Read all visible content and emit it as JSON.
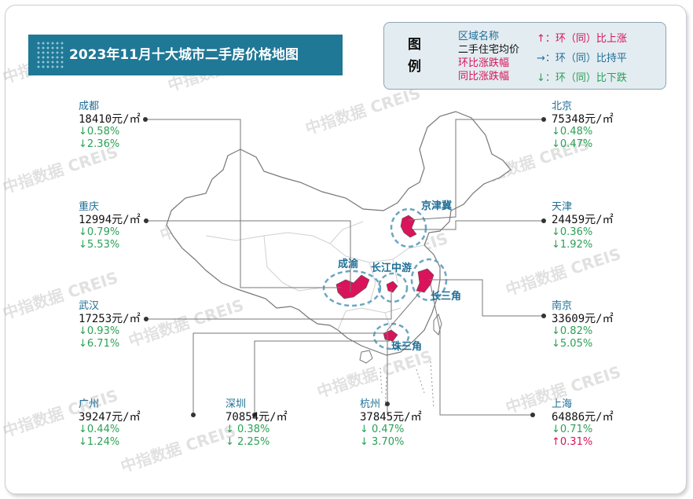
{
  "title": "2023年11月十大城市二手房价格地图",
  "legend": {
    "heading": "图例",
    "area_name": "区域名称",
    "avg_price": "二手住宅均价",
    "mom_change": "环比涨跌幅",
    "yoy_change": "同比涨跌幅",
    "up": "↑：环（同）比上涨",
    "flat": "→：环（同）比持平",
    "down": "↓：环（同）比下跌"
  },
  "regions": {
    "jjj": "京津冀",
    "cy": "成渝",
    "cjzy": "长江中游",
    "csj": "长三角",
    "zsj": "珠三角"
  },
  "watermark": "中指数据 CREIS",
  "cities": {
    "chengdu": {
      "name": "成都",
      "price": "18410元/㎡",
      "mom": "↓0.58%",
      "yoy": "↓2.36%"
    },
    "chongqing": {
      "name": "重庆",
      "price": "12994元/㎡",
      "mom": "↓0.79%",
      "yoy": "↓5.53%"
    },
    "wuhan": {
      "name": "武汉",
      "price": "17253元/㎡",
      "mom": "↓0.93%",
      "yoy": "↓6.71%"
    },
    "guangzhou": {
      "name": "广州",
      "price": "39247元/㎡",
      "mom": "↓0.44%",
      "yoy": "↓1.24%"
    },
    "shenzhen": {
      "name": "深圳",
      "price": "70854元/㎡",
      "mom": "↓ 0.38%",
      "yoy": "↓ 2.25%"
    },
    "hangzhou": {
      "name": "杭州",
      "price": "37845元/㎡",
      "mom": "↓ 0.47%",
      "yoy": "↓ 3.70%"
    },
    "shanghai": {
      "name": "上海",
      "price": "64886元/㎡",
      "mom": "↓0.71%",
      "yoy": "↑0.31%"
    },
    "beijing": {
      "name": "北京",
      "price": "75348元/㎡",
      "mom": "↓0.48%",
      "yoy": "↓0.47%"
    },
    "tianjin": {
      "name": "天津",
      "price": "24459元/㎡",
      "mom": "↓0.36%",
      "yoy": "↓1.92%"
    },
    "nanjing": {
      "name": "南京",
      "price": "33609元/㎡",
      "mom": "↓0.82%",
      "yoy": "↓5.05%"
    }
  }
}
